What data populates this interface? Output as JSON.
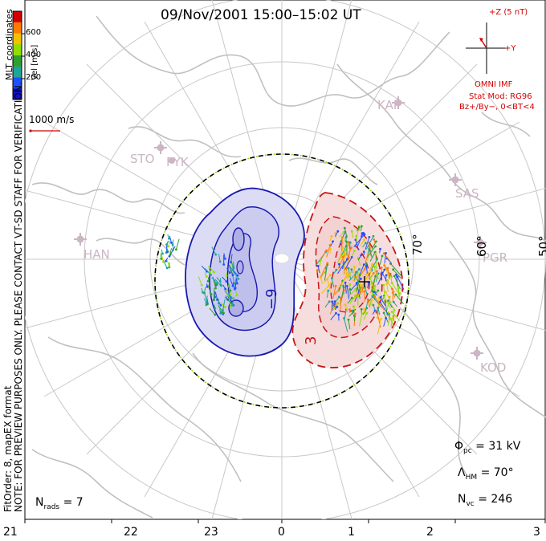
{
  "title": "09/Nov/2001  15:00–15:02  UT",
  "colorbar": {
    "label": "Vel [m/s]",
    "ticks": [
      "600",
      "400",
      "200"
    ],
    "colors": [
      "#d40000",
      "#ff7a00",
      "#f2c200",
      "#8ee000",
      "#2ea02e",
      "#1fa39a",
      "#2050ff",
      "#1010d0"
    ]
  },
  "coords_label": "MLT coordinates",
  "scale": {
    "label": "1000 m/s",
    "color": "#d40000"
  },
  "imf": {
    "bz_label": "+Z (5 nT)",
    "by_label": "+Y",
    "source": "OMNI IMF",
    "model": "Stat Mod: RG96",
    "condition": "Bz+/By−, 0<BT<4",
    "color": "#d40000"
  },
  "stations": [
    "STO",
    "PYK",
    "KAP",
    "SAS",
    "HAN",
    "PGR",
    "KOD"
  ],
  "lat_labels": [
    "70°",
    "60°",
    "50°"
  ],
  "potential_labels": {
    "neg": "−9",
    "pos": "3"
  },
  "notes": {
    "preview": "NOTE: FOR PREVIEW PURPOSES ONLY. PLEASE CONTACT VT-SD STAFF FOR VERIFICATION.",
    "fit": "FitOrder: 8, mapEX format"
  },
  "stats": {
    "nrads_label": "N",
    "nrads_sub": "rads",
    "nrads_value": "= 7",
    "phi_label": "Φ",
    "phi_sub": "pc",
    "phi_value": "=  31 kV",
    "lhm_label": "Λ",
    "lhm_sub": "HM",
    "lhm_value": "=  70°",
    "nvc_label": "N",
    "nvc_sub": "vc",
    "nvc_value": "=  246"
  },
  "mlt_axis": [
    "21",
    "22",
    "23",
    "0",
    "1",
    "2",
    "3"
  ],
  "colors": {
    "neg_cell": "#1818b0",
    "neg_fill": "#dcdcf4",
    "pos_cell": "#c81414",
    "pos_fill": "#f6dede",
    "grid": "#c8c8c8",
    "coast": "#c0c0c0",
    "station": "#cbb6c4"
  }
}
